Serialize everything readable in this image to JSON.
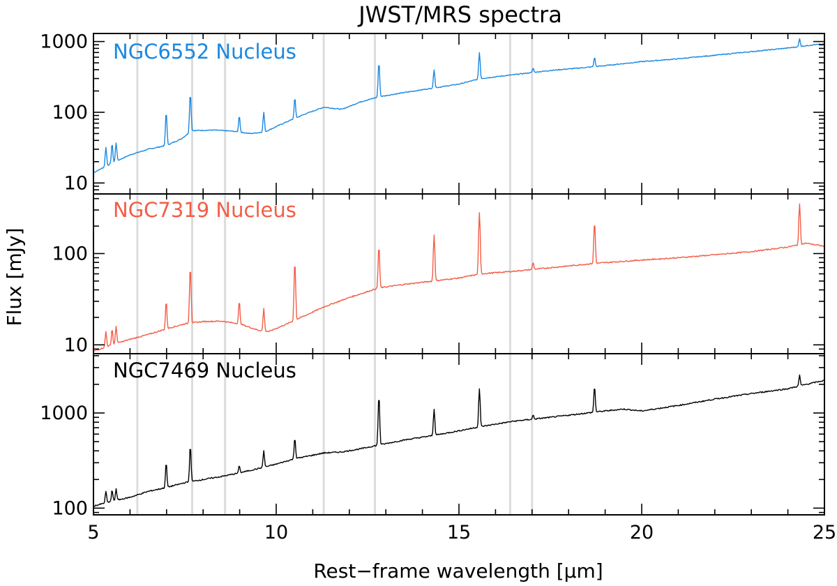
{
  "chart_data": {
    "type": "line",
    "title": "JWST/MRS spectra",
    "xlabel": "Rest−frame wavelength [μm]",
    "ylabel": "Flux [mJy]",
    "xlim": [
      5,
      25
    ],
    "xticks": [
      5,
      10,
      15,
      20,
      25
    ],
    "x_minor_step": 1,
    "yscale": "log",
    "reference_lines_um": [
      6.2,
      7.7,
      8.6,
      11.3,
      12.7,
      16.4,
      17.0
    ],
    "panels": [
      {
        "name": "NGC6552 Nucleus",
        "color": "#1a88e0",
        "ylim": [
          7,
          1300
        ],
        "yticks": [
          10,
          100,
          1000
        ],
        "yticklabels": [
          "10",
          "100",
          "1000"
        ],
        "continuum": [
          [
            5,
            14
          ],
          [
            5.5,
            19
          ],
          [
            6,
            25
          ],
          [
            6.5,
            30
          ],
          [
            7,
            34
          ],
          [
            7.4,
            42
          ],
          [
            7.7,
            55
          ],
          [
            8.3,
            56
          ],
          [
            8.8,
            54
          ],
          [
            9.3,
            50
          ],
          [
            9.7,
            53
          ],
          [
            10.2,
            70
          ],
          [
            10.8,
            95
          ],
          [
            11.3,
            118
          ],
          [
            11.8,
            110
          ],
          [
            12.3,
            140
          ],
          [
            12.8,
            165
          ],
          [
            13.5,
            190
          ],
          [
            14.3,
            220
          ],
          [
            15,
            250
          ],
          [
            15.6,
            300
          ],
          [
            16.5,
            340
          ],
          [
            17.5,
            390
          ],
          [
            18.7,
            440
          ],
          [
            20,
            520
          ],
          [
            21,
            570
          ],
          [
            22,
            640
          ],
          [
            23,
            720
          ],
          [
            24,
            810
          ],
          [
            24.7,
            900
          ],
          [
            25,
            920
          ]
        ],
        "lines": [
          [
            5.34,
            32
          ],
          [
            5.51,
            36
          ],
          [
            5.62,
            37
          ],
          [
            6.99,
            100
          ],
          [
            7.65,
            180
          ],
          [
            8.99,
            90
          ],
          [
            9.66,
            100
          ],
          [
            10.51,
            160
          ],
          [
            12.81,
            500
          ],
          [
            14.32,
            400
          ],
          [
            15.56,
            700
          ],
          [
            17.03,
            420
          ],
          [
            18.71,
            600
          ],
          [
            24.32,
            1100
          ]
        ]
      },
      {
        "name": "NGC7319 Nucleus",
        "color": "#f35d46",
        "ylim": [
          8,
          450
        ],
        "yticks": [
          10,
          100
        ],
        "yticklabels": [
          "10",
          "100"
        ],
        "continuum": [
          [
            5,
            8.5
          ],
          [
            5.5,
            10
          ],
          [
            6,
            11.5
          ],
          [
            6.5,
            13
          ],
          [
            7,
            15
          ],
          [
            7.5,
            17
          ],
          [
            8,
            18
          ],
          [
            8.5,
            18.2
          ],
          [
            9,
            17
          ],
          [
            9.5,
            14.5
          ],
          [
            9.8,
            14
          ],
          [
            10.3,
            17
          ],
          [
            10.8,
            21
          ],
          [
            11.3,
            26
          ],
          [
            12,
            33
          ],
          [
            12.8,
            42
          ],
          [
            13.5,
            46
          ],
          [
            14.3,
            50
          ],
          [
            15,
            54
          ],
          [
            15.6,
            60
          ],
          [
            16.5,
            64
          ],
          [
            17.5,
            70
          ],
          [
            18.7,
            78
          ],
          [
            20,
            85
          ],
          [
            21,
            90
          ],
          [
            22,
            97
          ],
          [
            23,
            105
          ],
          [
            24,
            118
          ],
          [
            24.5,
            130
          ],
          [
            25,
            120
          ]
        ],
        "lines": [
          [
            5.34,
            14
          ],
          [
            5.51,
            15
          ],
          [
            5.62,
            16
          ],
          [
            6.99,
            30
          ],
          [
            7.65,
            70
          ],
          [
            8.99,
            30
          ],
          [
            9.66,
            25
          ],
          [
            10.51,
            80
          ],
          [
            12.81,
            120
          ],
          [
            14.32,
            160
          ],
          [
            15.56,
            280
          ],
          [
            17.03,
            80
          ],
          [
            18.71,
            220
          ],
          [
            24.32,
            350
          ]
        ]
      },
      {
        "name": "NGC7469 Nucleus",
        "color": "#000000",
        "ylim": [
          85,
          4200
        ],
        "yticks": [
          100,
          1000
        ],
        "yticklabels": [
          "100",
          "1000"
        ],
        "continuum": [
          [
            5,
            105
          ],
          [
            5.5,
            118
          ],
          [
            6,
            130
          ],
          [
            6.5,
            150
          ],
          [
            7,
            165
          ],
          [
            7.5,
            185
          ],
          [
            8,
            200
          ],
          [
            8.5,
            215
          ],
          [
            9,
            235
          ],
          [
            9.5,
            260
          ],
          [
            10,
            290
          ],
          [
            10.5,
            330
          ],
          [
            11,
            360
          ],
          [
            11.3,
            380
          ],
          [
            11.8,
            390
          ],
          [
            12.3,
            420
          ],
          [
            12.8,
            460
          ],
          [
            13.5,
            520
          ],
          [
            14.3,
            580
          ],
          [
            15,
            650
          ],
          [
            15.6,
            720
          ],
          [
            16.5,
            820
          ],
          [
            17.5,
            900
          ],
          [
            18.7,
            1020
          ],
          [
            19.5,
            1100
          ],
          [
            20,
            1050
          ],
          [
            21,
            1200
          ],
          [
            22,
            1400
          ],
          [
            23,
            1600
          ],
          [
            24,
            1800
          ],
          [
            24.5,
            2000
          ],
          [
            25,
            2200
          ]
        ],
        "lines": [
          [
            5.34,
            150
          ],
          [
            5.51,
            155
          ],
          [
            5.62,
            160
          ],
          [
            6.99,
            300
          ],
          [
            7.65,
            450
          ],
          [
            8.99,
            280
          ],
          [
            9.66,
            400
          ],
          [
            10.51,
            550
          ],
          [
            12.81,
            1500
          ],
          [
            14.32,
            1100
          ],
          [
            15.56,
            1800
          ],
          [
            17.03,
            950
          ],
          [
            18.71,
            1900
          ],
          [
            24.32,
            2500
          ]
        ]
      }
    ]
  }
}
